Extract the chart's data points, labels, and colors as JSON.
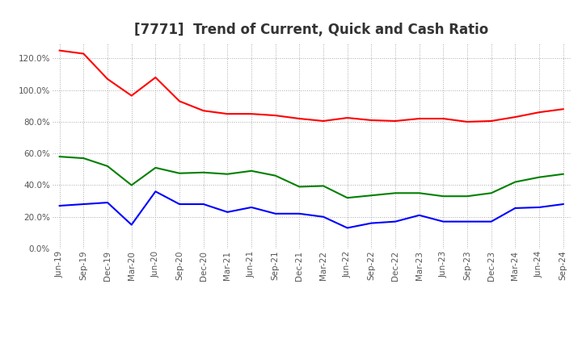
{
  "title": "[7771]  Trend of Current, Quick and Cash Ratio",
  "x_labels": [
    "Jun-19",
    "Sep-19",
    "Dec-19",
    "Mar-20",
    "Jun-20",
    "Sep-20",
    "Dec-20",
    "Mar-21",
    "Jun-21",
    "Sep-21",
    "Dec-21",
    "Mar-22",
    "Jun-22",
    "Sep-22",
    "Dec-22",
    "Mar-23",
    "Jun-23",
    "Sep-23",
    "Dec-23",
    "Mar-24",
    "Jun-24",
    "Sep-24"
  ],
  "current_ratio": [
    125.0,
    123.0,
    107.0,
    96.5,
    108.0,
    93.0,
    87.0,
    85.0,
    85.0,
    84.0,
    82.0,
    80.5,
    82.5,
    81.0,
    80.5,
    82.0,
    82.0,
    80.0,
    80.5,
    83.0,
    86.0,
    88.0
  ],
  "quick_ratio": [
    58.0,
    57.0,
    52.0,
    40.0,
    51.0,
    47.5,
    48.0,
    47.0,
    49.0,
    46.0,
    39.0,
    39.5,
    32.0,
    33.5,
    35.0,
    35.0,
    33.0,
    33.0,
    35.0,
    42.0,
    45.0,
    47.0
  ],
  "cash_ratio": [
    27.0,
    28.0,
    29.0,
    15.0,
    36.0,
    28.0,
    28.0,
    23.0,
    26.0,
    22.0,
    22.0,
    20.0,
    13.0,
    16.0,
    17.0,
    21.0,
    17.0,
    17.0,
    17.0,
    25.5,
    26.0,
    28.0
  ],
  "current_color": "#ff0000",
  "quick_color": "#008000",
  "cash_color": "#0000ff",
  "ylim": [
    0,
    130
  ],
  "yticks": [
    0,
    20,
    40,
    60,
    80,
    100,
    120
  ],
  "ytick_labels": [
    "0.0%",
    "20.0%",
    "40.0%",
    "60.0%",
    "80.0%",
    "100.0%",
    "120.0%"
  ],
  "background_color": "#ffffff",
  "grid_color": "#aaaaaa",
  "title_fontsize": 12,
  "legend_fontsize": 9,
  "tick_fontsize": 7.5
}
